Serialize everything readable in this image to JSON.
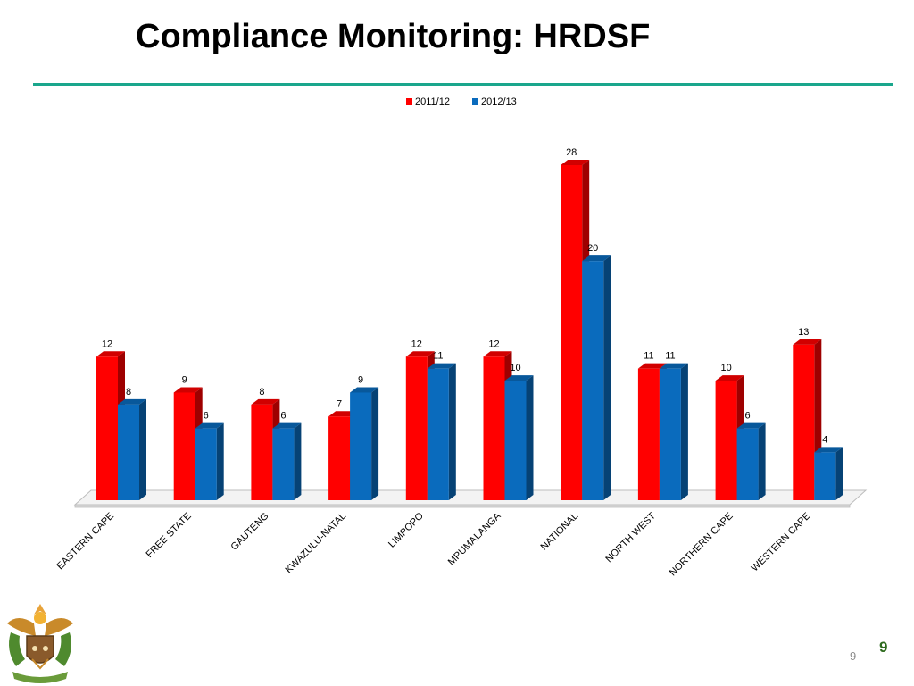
{
  "slide": {
    "title": "Compliance Monitoring: HRDSF",
    "page_number_small": "9",
    "page_number_big": "9"
  },
  "colors": {
    "rule": "#1aa68c",
    "series_2011": "#ff0000",
    "series_2012": "#0a6bbd"
  },
  "chart_data": {
    "type": "bar",
    "style": "3d-clustered",
    "legend_position": "top",
    "categories": [
      "EASTERN CAPE",
      "FREE STATE",
      "GAUTENG",
      "KWAZULU-NATAL",
      "LIMPOPO",
      "MPUMALANGA",
      "NATIONAL",
      "NORTH WEST",
      "NORTHERN CAPE",
      "WESTERN CAPE"
    ],
    "series": [
      {
        "name": "2011/12",
        "color": "#ff0000",
        "values": [
          12,
          9,
          8,
          7,
          12,
          12,
          28,
          11,
          10,
          13
        ]
      },
      {
        "name": "2012/13",
        "color": "#0a6bbd",
        "values": [
          8,
          6,
          6,
          9,
          11,
          10,
          20,
          11,
          6,
          4
        ]
      }
    ],
    "ylim": [
      0,
      28
    ],
    "grid": false
  }
}
